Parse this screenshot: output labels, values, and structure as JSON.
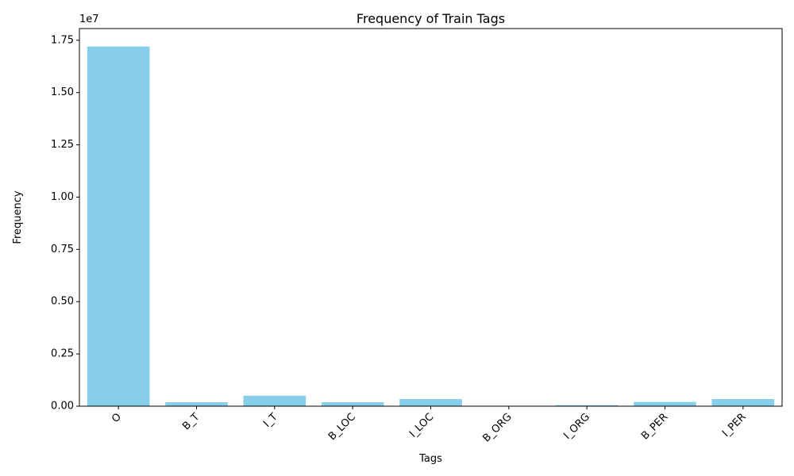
{
  "chart_data": {
    "type": "bar",
    "title": "Frequency of Train Tags",
    "xlabel": "Tags",
    "ylabel": "Frequency",
    "offset_label": "1e7",
    "categories": [
      "O",
      "B_T",
      "I_T",
      "B_LOC",
      "I_LOC",
      "B_ORG",
      "I_ORG",
      "B_PER",
      "I_PER"
    ],
    "values": [
      17200000,
      190000,
      500000,
      190000,
      340000,
      8000,
      45000,
      200000,
      340000
    ],
    "ylim": [
      0,
      18060000
    ],
    "yticks": [
      0,
      2500000,
      5000000,
      7500000,
      10000000,
      12500000,
      15000000,
      17500000
    ],
    "ytick_labels": [
      "0.00",
      "0.25",
      "0.50",
      "0.75",
      "1.00",
      "1.25",
      "1.50",
      "1.75"
    ],
    "bar_color": "#87CEEB",
    "grid": false,
    "legend": "none"
  }
}
